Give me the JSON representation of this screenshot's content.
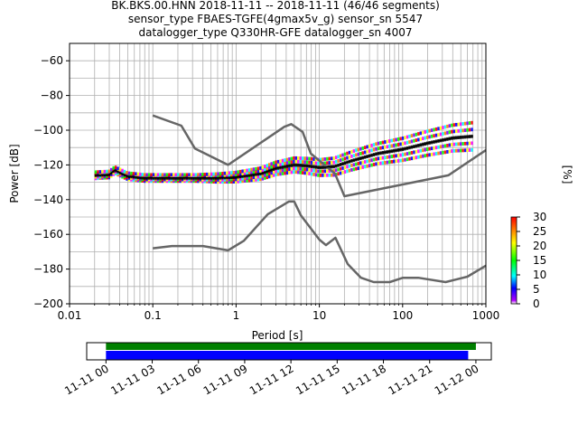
{
  "chart_data": [
    {
      "type": "heatmap",
      "title_lines": [
        "BK.BKS.00.HNN   2018-11-11 -- 2018-11-11  (46/46 segments)",
        "sensor_type FBAES-TGFE(4gmax5v_g) sensor_sn 5547",
        "datalogger_type Q330HR-GFE datalogger_sn 4007"
      ],
      "xlabel": "Period [s]",
      "ylabel": "Power [dB]",
      "xscale": "log",
      "xlim": [
        0.01,
        1000
      ],
      "ylim": [
        -200,
        -50
      ],
      "x_ticks": [
        {
          "v": 0.01,
          "label": "0.01"
        },
        {
          "v": 0.1,
          "label": "0.1"
        },
        {
          "v": 1,
          "label": "1"
        },
        {
          "v": 10,
          "label": "10"
        },
        {
          "v": 100,
          "label": "100"
        },
        {
          "v": 1000,
          "label": "1000"
        }
      ],
      "y_ticks": [
        {
          "v": -60,
          "label": "−60"
        },
        {
          "v": -80,
          "label": "−80"
        },
        {
          "v": -100,
          "label": "−100"
        },
        {
          "v": -120,
          "label": "−120"
        },
        {
          "v": -140,
          "label": "−140"
        },
        {
          "v": -160,
          "label": "−160"
        },
        {
          "v": -180,
          "label": "−180"
        },
        {
          "v": -200,
          "label": "−200"
        }
      ],
      "grid": true,
      "series": [
        {
          "role": "noise-model-high",
          "color": "#666666",
          "points": [
            [
              0.1,
              -91.5
            ],
            [
              0.22,
              -97.4
            ],
            [
              0.32,
              -110.5
            ],
            [
              0.8,
              -120
            ],
            [
              3.8,
              -98
            ],
            [
              4.6,
              -96.5
            ],
            [
              6.3,
              -101
            ],
            [
              7.9,
              -113.5
            ],
            [
              15.4,
              -125
            ],
            [
              20,
              -138
            ],
            [
              354,
              -126
            ],
            [
              1000,
              -111.5
            ]
          ]
        },
        {
          "role": "noise-model-low",
          "color": "#666666",
          "points": [
            [
              0.1,
              -168
            ],
            [
              0.17,
              -166.7
            ],
            [
              0.4,
              -166.7
            ],
            [
              0.8,
              -169.2
            ],
            [
              1.24,
              -163.7
            ],
            [
              2.4,
              -148.4
            ],
            [
              4.3,
              -141.1
            ],
            [
              5,
              -141.1
            ],
            [
              6,
              -149
            ],
            [
              10,
              -163
            ],
            [
              12,
              -166.2
            ],
            [
              15.6,
              -162
            ],
            [
              21.9,
              -177.1
            ],
            [
              31.6,
              -185
            ],
            [
              45,
              -187.5
            ],
            [
              70,
              -187.5
            ],
            [
              101,
              -185
            ],
            [
              154,
              -185
            ],
            [
              328,
              -187.5
            ],
            [
              600,
              -184.4
            ],
            [
              1000,
              -178
            ]
          ]
        },
        {
          "role": "mode",
          "color": "#000000",
          "points": [
            [
              0.02,
              -126
            ],
            [
              0.03,
              -125.5
            ],
            [
              0.035,
              -123
            ],
            [
              0.05,
              -126.5
            ],
            [
              0.08,
              -127.5
            ],
            [
              0.15,
              -127.5
            ],
            [
              0.3,
              -127.5
            ],
            [
              0.6,
              -127.5
            ],
            [
              1,
              -127
            ],
            [
              2,
              -125
            ],
            [
              3,
              -122
            ],
            [
              5,
              -120
            ],
            [
              7,
              -120.5
            ],
            [
              10,
              -121.5
            ],
            [
              15,
              -121
            ],
            [
              25,
              -117.5
            ],
            [
              50,
              -113.5
            ],
            [
              100,
              -111
            ],
            [
              200,
              -107.5
            ],
            [
              400,
              -104.5
            ],
            [
              700,
              -103.5
            ]
          ]
        }
      ],
      "colorbar": {
        "label": "[%]",
        "range": [
          0,
          30
        ],
        "ticks": [
          0,
          5,
          10,
          15,
          20,
          25,
          30
        ],
        "colors": [
          "#ffffff",
          "#8000ff",
          "#0000ff",
          "#00ffff",
          "#00ff00",
          "#ffff00",
          "#ff8000",
          "#ff0000"
        ]
      }
    },
    {
      "type": "timeline",
      "x_ticks": [
        "11-11 00",
        "11-11 03",
        "11-11 06",
        "11-11 09",
        "11-11 12",
        "11-11 15",
        "11-11 18",
        "11-11 21",
        "11-12 00"
      ],
      "xlim_hours": [
        -1.25,
        25.0
      ],
      "bars": [
        {
          "color": "#008000",
          "start_hour": 0,
          "end_hour": 24.0
        },
        {
          "color": "#0000ff",
          "start_hour": 0,
          "end_hour": 23.5
        }
      ]
    }
  ]
}
